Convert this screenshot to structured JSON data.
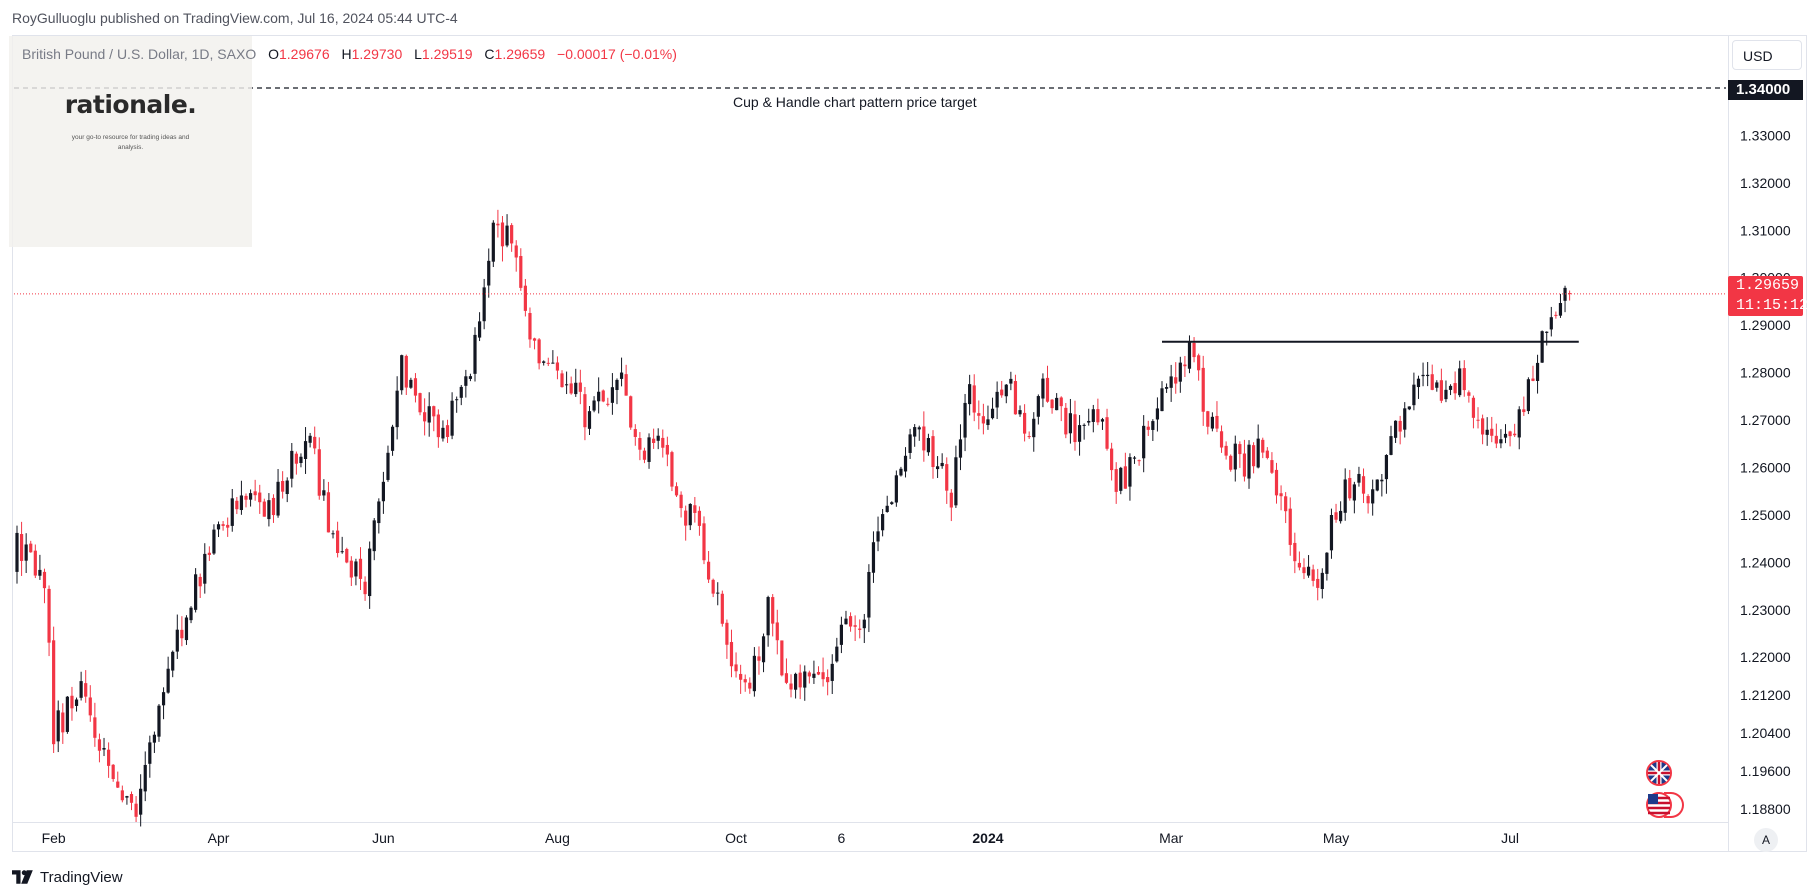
{
  "header": {
    "publisher": "RoyGulluoglu published on TradingView.com, Jul 16, 2024 05:44 UTC-4"
  },
  "legend": {
    "symbol": "British Pound / U.S. Dollar, 1D, SAXO",
    "open_label": "O",
    "open": "1.29676",
    "high_label": "H",
    "high": "1.29730",
    "low_label": "L",
    "low": "1.29519",
    "close_label": "C",
    "close": "1.29659",
    "change": "−0.00017 (−0.01%)"
  },
  "watermark": {
    "title": "rationale.",
    "tagline": "your go-to resource for trading ideas and analysis."
  },
  "toolbar": {
    "currency": "USD",
    "auto_scale": "A"
  },
  "footer": {
    "brand": "TradingView"
  },
  "colors": {
    "up": "#089981",
    "down": "#f23645",
    "candle_up": "#131722",
    "candle_down": "#f23645",
    "price_line": "#f23645"
  },
  "chart_data": {
    "type": "candlestick",
    "instrument": "British Pound / U.S. Dollar, 1D, SAXO",
    "ylim": [
      1.184,
      1.35
    ],
    "y_ticks": [
      "1.34000",
      "1.33000",
      "1.32000",
      "1.31000",
      "1.30000",
      "1.29000",
      "1.28000",
      "1.27000",
      "1.26000",
      "1.25000",
      "1.24000",
      "1.23000",
      "1.22000",
      "1.21200",
      "1.20400",
      "1.19600",
      "1.18800"
    ],
    "x_ticks": [
      {
        "label": "Feb",
        "index": 8,
        "bold": false
      },
      {
        "label": "Apr",
        "index": 44,
        "bold": false
      },
      {
        "label": "Jun",
        "index": 80,
        "bold": false
      },
      {
        "label": "Aug",
        "index": 118,
        "bold": false
      },
      {
        "label": "Oct",
        "index": 157,
        "bold": false
      },
      {
        "label": "6",
        "index": 180,
        "bold": false
      },
      {
        "label": "2024",
        "index": 212,
        "bold": true
      },
      {
        "label": "Mar",
        "index": 252,
        "bold": false
      },
      {
        "label": "May",
        "index": 288,
        "bold": false
      },
      {
        "label": "Jul",
        "index": 326,
        "bold": false
      }
    ],
    "last_price": {
      "value": 1.29659,
      "label": "1.29659",
      "timer": "11:15:12"
    },
    "price_target": {
      "value": 1.34,
      "label": "1.34000",
      "annotation": "Cup & Handle chart pattern price target"
    },
    "resistance_line": {
      "value": 1.2865,
      "start_index": 250,
      "end_index": 341
    },
    "anchors": [
      [
        0,
        1.243
      ],
      [
        6,
        1.236
      ],
      [
        8,
        1.204
      ],
      [
        14,
        1.214
      ],
      [
        20,
        1.196
      ],
      [
        26,
        1.188
      ],
      [
        32,
        1.214
      ],
      [
        38,
        1.232
      ],
      [
        44,
        1.246
      ],
      [
        50,
        1.255
      ],
      [
        56,
        1.251
      ],
      [
        60,
        1.262
      ],
      [
        64,
        1.266
      ],
      [
        68,
        1.248
      ],
      [
        72,
        1.238
      ],
      [
        76,
        1.236
      ],
      [
        80,
        1.258
      ],
      [
        84,
        1.281
      ],
      [
        88,
        1.274
      ],
      [
        92,
        1.266
      ],
      [
        96,
        1.273
      ],
      [
        100,
        1.285
      ],
      [
        104,
        1.313
      ],
      [
        108,
        1.306
      ],
      [
        112,
        1.288
      ],
      [
        116,
        1.281
      ],
      [
        120,
        1.279
      ],
      [
        124,
        1.271
      ],
      [
        128,
        1.274
      ],
      [
        132,
        1.278
      ],
      [
        136,
        1.264
      ],
      [
        140,
        1.266
      ],
      [
        144,
        1.253
      ],
      [
        148,
        1.248
      ],
      [
        152,
        1.236
      ],
      [
        156,
        1.221
      ],
      [
        160,
        1.213
      ],
      [
        164,
        1.231
      ],
      [
        168,
        1.213
      ],
      [
        172,
        1.218
      ],
      [
        176,
        1.213
      ],
      [
        180,
        1.226
      ],
      [
        184,
        1.226
      ],
      [
        188,
        1.246
      ],
      [
        192,
        1.258
      ],
      [
        196,
        1.267
      ],
      [
        200,
        1.262
      ],
      [
        204,
        1.254
      ],
      [
        208,
        1.276
      ],
      [
        212,
        1.271
      ],
      [
        216,
        1.279
      ],
      [
        220,
        1.267
      ],
      [
        224,
        1.277
      ],
      [
        228,
        1.271
      ],
      [
        232,
        1.267
      ],
      [
        236,
        1.272
      ],
      [
        240,
        1.255
      ],
      [
        244,
        1.262
      ],
      [
        248,
        1.271
      ],
      [
        252,
        1.276
      ],
      [
        256,
        1.286
      ],
      [
        260,
        1.271
      ],
      [
        264,
        1.263
      ],
      [
        268,
        1.261
      ],
      [
        272,
        1.266
      ],
      [
        276,
        1.252
      ],
      [
        280,
        1.238
      ],
      [
        284,
        1.236
      ],
      [
        288,
        1.252
      ],
      [
        292,
        1.258
      ],
      [
        296,
        1.253
      ],
      [
        300,
        1.268
      ],
      [
        304,
        1.273
      ],
      [
        308,
        1.279
      ],
      [
        312,
        1.276
      ],
      [
        316,
        1.279
      ],
      [
        320,
        1.268
      ],
      [
        324,
        1.263
      ],
      [
        328,
        1.272
      ],
      [
        332,
        1.282
      ],
      [
        335,
        1.294
      ],
      [
        338,
        1.2966
      ]
    ]
  }
}
